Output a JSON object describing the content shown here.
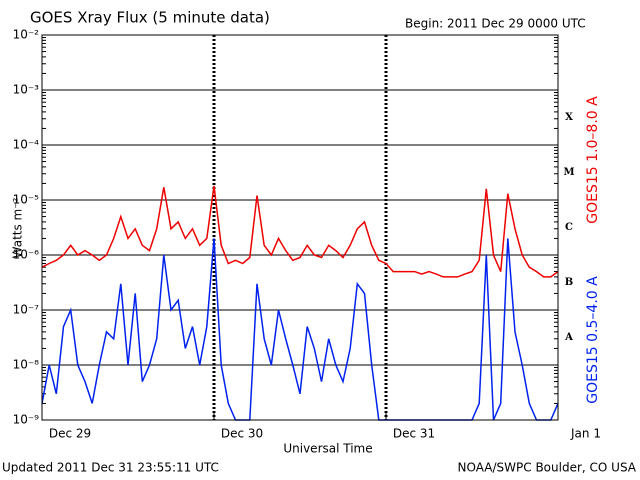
{
  "chart_data": {
    "type": "line",
    "title": "GOES Xray Flux (5 minute data)",
    "subtitle": "Begin:  2011 Dec 29 0000 UTC",
    "xlabel": "Universal Time",
    "ylabel": "Watts m⁻²",
    "footer_left": "Updated 2011 Dec 31 23:55:11 UTC",
    "footer_right": "NOAA/SWPC Boulder, CO USA",
    "log_y": true,
    "grid": true,
    "xlim": [
      0,
      72
    ],
    "xticks": [
      {
        "value": 0,
        "label": "Dec 29"
      },
      {
        "value": 24,
        "label": "Dec 30"
      },
      {
        "value": 48,
        "label": "Dec 31"
      },
      {
        "value": 72,
        "label": "Jan 1"
      }
    ],
    "ylim": [
      1e-09,
      0.01
    ],
    "yticks": [
      {
        "value": 1e-09,
        "label": "10⁻⁹"
      },
      {
        "value": 1e-08,
        "label": "10⁻⁸"
      },
      {
        "value": 1e-07,
        "label": "10⁻⁷"
      },
      {
        "value": 1e-06,
        "label": "10⁻⁶"
      },
      {
        "value": 1e-05,
        "label": "10⁻⁵"
      },
      {
        "value": 0.0001,
        "label": "10⁻⁴"
      },
      {
        "value": 0.001,
        "label": "10⁻³"
      },
      {
        "value": 0.01,
        "label": "10⁻²"
      }
    ],
    "flare_classes": [
      {
        "label": "A",
        "value": 1e-08
      },
      {
        "label": "B",
        "value": 1e-07
      },
      {
        "label": "C",
        "value": 1e-06
      },
      {
        "label": "M",
        "value": 1e-05
      },
      {
        "label": "X",
        "value": 0.0001
      }
    ],
    "x": [
      0,
      1,
      2,
      3,
      4,
      5,
      6,
      7,
      8,
      9,
      10,
      11,
      12,
      13,
      14,
      15,
      16,
      17,
      18,
      19,
      20,
      21,
      22,
      23,
      24,
      25,
      26,
      27,
      28,
      29,
      30,
      31,
      32,
      33,
      34,
      35,
      36,
      37,
      38,
      39,
      40,
      41,
      42,
      43,
      44,
      45,
      46,
      47,
      48,
      49,
      50,
      51,
      52,
      53,
      54,
      55,
      56,
      57,
      58,
      59,
      60,
      61,
      62,
      63,
      64,
      65,
      66,
      67,
      68,
      69,
      70,
      71,
      72
    ],
    "series": [
      {
        "name": "GOES15 1.0–8.0 A",
        "color": "#ee0000",
        "values": [
          6e-07,
          7e-07,
          8e-07,
          1e-06,
          1.5e-06,
          1e-06,
          1.2e-06,
          1e-06,
          8e-07,
          1e-06,
          2e-06,
          5e-06,
          2e-06,
          3e-06,
          1.5e-06,
          1.2e-06,
          3e-06,
          1.7e-05,
          3e-06,
          4e-06,
          2e-06,
          3e-06,
          1.5e-06,
          2e-06,
          1.8e-05,
          1.5e-06,
          7e-07,
          8e-07,
          7e-07,
          9e-07,
          1.2e-05,
          1.5e-06,
          1e-06,
          2e-06,
          1.2e-06,
          8e-07,
          9e-07,
          1.5e-06,
          1e-06,
          9e-07,
          1.5e-06,
          1.2e-06,
          9e-07,
          1.5e-06,
          3e-06,
          4e-06,
          1.5e-06,
          8e-07,
          7e-07,
          5e-07,
          5e-07,
          5e-07,
          5e-07,
          4.5e-07,
          5e-07,
          4.5e-07,
          4e-07,
          4e-07,
          4e-07,
          4.5e-07,
          5e-07,
          8e-07,
          1.6e-05,
          1e-06,
          5e-07,
          1.3e-05,
          3e-06,
          1e-06,
          6e-07,
          5e-07,
          4e-07,
          4e-07,
          5e-07
        ]
      },
      {
        "name": "GOES15 0.5–4.0 A",
        "color": "#0022ee",
        "values": [
          2e-09,
          1e-08,
          3e-09,
          5e-08,
          1e-07,
          1e-08,
          5e-09,
          2e-09,
          1e-08,
          4e-08,
          3e-08,
          3e-07,
          1e-08,
          2e-07,
          5e-09,
          1e-08,
          3e-08,
          1e-06,
          1e-07,
          1.5e-07,
          2e-08,
          5e-08,
          1e-08,
          5e-08,
          2e-06,
          1e-08,
          2e-09,
          1e-09,
          1e-09,
          1e-09,
          3e-07,
          3e-08,
          1e-08,
          1e-07,
          3e-08,
          1e-08,
          3e-09,
          5e-08,
          2e-08,
          5e-09,
          3e-08,
          1e-08,
          5e-09,
          2e-08,
          3e-07,
          2e-07,
          1e-08,
          1e-09,
          1e-09,
          1e-09,
          1e-09,
          1e-09,
          1e-09,
          1e-09,
          1e-09,
          1e-09,
          1e-09,
          1e-09,
          1e-09,
          1e-09,
          1e-09,
          2e-09,
          1e-06,
          1e-09,
          2e-09,
          2e-06,
          4e-08,
          1e-08,
          2e-09,
          1e-09,
          1e-09,
          1e-09,
          2e-09
        ]
      }
    ]
  }
}
